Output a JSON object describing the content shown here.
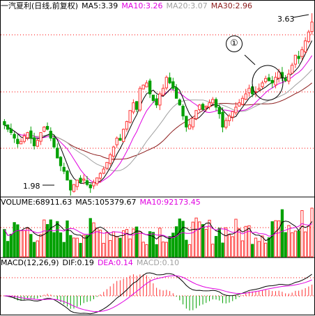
{
  "price_panel": {
    "header": {
      "stock": "一汽夏利(日线,前复权)",
      "ma5": "MA5:3.39",
      "ma10": "MA10:3.26",
      "ma20": "MA20:3.07",
      "ma30": "MA30:2.96"
    },
    "high_label": "3.63",
    "low_label": "1.98",
    "annotation": "①"
  },
  "volume_panel": {
    "header": {
      "volume": "VOLUME:68911.63",
      "ma5": "MA5:105379.67",
      "ma10": "MA10:92173.45"
    }
  },
  "macd_panel": {
    "header": {
      "title": "MACD(12,26,9)",
      "dif": "DIF:0.19",
      "dea": "DEA:0.14",
      "macd": "MACD:0.10"
    }
  },
  "colors": {
    "up": "#ff3232",
    "down": "#00a000",
    "ma5": "#000000",
    "ma10": "#e000e0",
    "ma20": "#a0a0a0",
    "ma30": "#8b1a1a",
    "grid": "#ff0000"
  },
  "chart_data": {
    "type": "candlestick",
    "price_range": [
      1.98,
      3.63
    ],
    "closes": [
      2.62,
      2.58,
      2.55,
      2.5,
      2.45,
      2.47,
      2.52,
      2.55,
      2.5,
      2.43,
      2.48,
      2.55,
      2.6,
      2.58,
      2.5,
      2.42,
      2.32,
      2.25,
      2.2,
      2.12,
      2.03,
      2.08,
      2.12,
      2.1,
      2.13,
      2.08,
      2.05,
      2.1,
      2.14,
      2.18,
      2.22,
      2.28,
      2.35,
      2.42,
      2.5,
      2.48,
      2.58,
      2.65,
      2.75,
      2.82,
      2.76,
      2.95,
      2.98,
      3.0,
      2.9,
      2.84,
      2.8,
      2.9,
      2.95,
      3.05,
      3.0,
      2.95,
      2.86,
      2.8,
      2.7,
      2.6,
      2.62,
      2.68,
      2.75,
      2.8,
      2.76,
      2.79,
      2.82,
      2.85,
      2.78,
      2.72,
      2.6,
      2.66,
      2.7,
      2.74,
      2.78,
      2.82,
      2.86,
      2.9,
      2.95,
      2.9,
      2.92,
      2.95,
      3.0,
      3.04,
      3.02,
      3.0,
      3.05,
      3.1,
      3.05,
      3.02,
      3.08,
      3.16,
      3.25,
      3.22,
      3.3,
      3.38,
      3.46,
      3.55
    ],
    "macd_hist_values": "derived from closes",
    "macd_dif_dea": "derived from closes"
  }
}
